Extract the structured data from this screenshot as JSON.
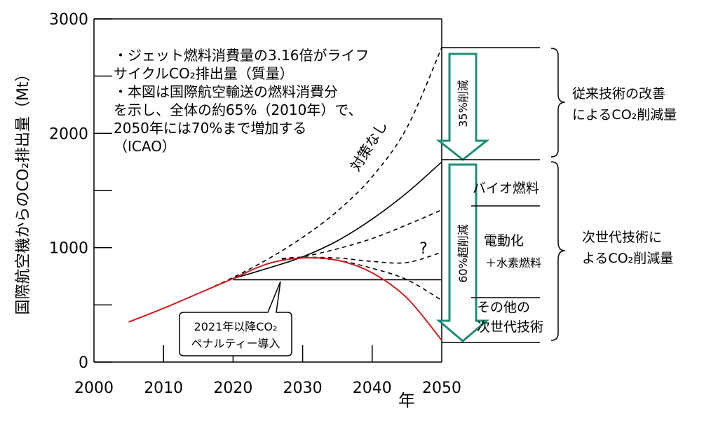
{
  "chart_data": {
    "type": "line",
    "title": "",
    "xlabel": "年",
    "ylabel": "国際航空機からのCO₂排出量（Mt）",
    "xlim": [
      2000,
      2050
    ],
    "ylim": [
      0,
      3000
    ],
    "x_ticks": [
      "2000",
      "2010",
      "2020",
      "2030",
      "2040",
      "2050"
    ],
    "y_ticks": [
      "0",
      "1000",
      "2000",
      "3000"
    ],
    "grid": false,
    "series": [
      {
        "name": "対策なし",
        "style": "dashed",
        "color": "#000000",
        "points": [
          [
            2005,
            350
          ],
          [
            2010,
            470
          ],
          [
            2015,
            600
          ],
          [
            2020,
            740
          ],
          [
            2025,
            900
          ],
          [
            2030,
            1090
          ],
          [
            2035,
            1320
          ],
          [
            2040,
            1620
          ],
          [
            2045,
            2050
          ],
          [
            2050,
            2750
          ]
        ]
      },
      {
        "style": "solid",
        "color": "#000000",
        "points": [
          [
            2020,
            730
          ],
          [
            2025,
            820
          ],
          [
            2030,
            920
          ],
          [
            2035,
            1060
          ],
          [
            2040,
            1250
          ],
          [
            2045,
            1480
          ],
          [
            2050,
            1750
          ]
        ]
      },
      {
        "style": "dashed",
        "color": "#000000",
        "points": [
          [
            2027,
            900
          ],
          [
            2030,
            920
          ],
          [
            2035,
            990
          ],
          [
            2040,
            1080
          ],
          [
            2045,
            1200
          ],
          [
            2050,
            1330
          ]
        ]
      },
      {
        "style": "dashed",
        "color": "#000000",
        "points": [
          [
            2027,
            905
          ],
          [
            2030,
            915
          ],
          [
            2035,
            910
          ],
          [
            2040,
            880
          ],
          [
            2045,
            870
          ],
          [
            2050,
            960
          ]
        ]
      },
      {
        "style": "dashed",
        "color": "#000000",
        "points": [
          [
            2027,
            905
          ],
          [
            2030,
            915
          ],
          [
            2035,
            890
          ],
          [
            2040,
            820
          ],
          [
            2045,
            720
          ],
          [
            2050,
            540
          ]
        ]
      },
      {
        "style": "solid",
        "color": "#000000",
        "points": [
          [
            2020,
            720
          ],
          [
            2050,
            720
          ]
        ]
      },
      {
        "style": "solid",
        "color": "#cc1f1f",
        "points": [
          [
            2005,
            350
          ],
          [
            2010,
            470
          ],
          [
            2015,
            600
          ],
          [
            2020,
            730
          ],
          [
            2025,
            860
          ],
          [
            2030,
            910
          ],
          [
            2035,
            890
          ],
          [
            2040,
            780
          ],
          [
            2045,
            560
          ],
          [
            2050,
            190
          ]
        ]
      }
    ],
    "annotations": {
      "note_lines": [
        "・ジェット燃料消費量の3.16倍がライフ",
        "サイクルCO₂排出量（質量）",
        "・本図は国際航空輸送の燃料消費分",
        "を示し、全体の約65%（2010年）で、",
        "2050年には70%まで増加する",
        "（ICAO）"
      ],
      "no_measures": "対策なし",
      "arrow_35": "35%削減",
      "arrow_60": "60%超削減",
      "question": "?",
      "penalty_lines": [
        "2021年以降CO₂",
        "ペナルティー導入"
      ],
      "bio_fuel": "バイオ燃料",
      "electric": "電動化",
      "hydrogen": "＋水素燃料",
      "other_lines": [
        "その他の",
        "次世代技術"
      ],
      "conventional_lines": [
        "従来技術の改善",
        "によるCO₂削減量"
      ],
      "nextgen_lines": [
        "次世代技術に",
        "よるCO₂削減量"
      ]
    }
  }
}
